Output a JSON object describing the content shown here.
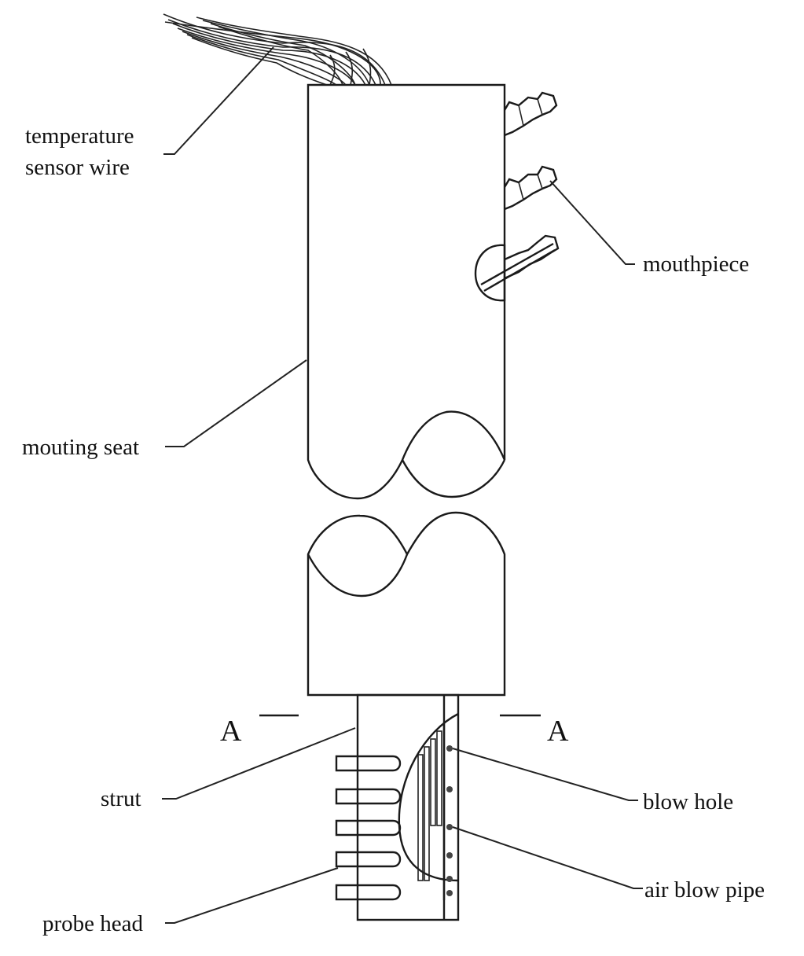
{
  "labels": {
    "temperature_sensor_wire_line1": "temperature",
    "temperature_sensor_wire_line2": "sensor wire",
    "mouthpiece": "mouthpiece",
    "mounting_seat": "mouting seat",
    "strut": "strut",
    "blow_hole": "blow hole",
    "air_blow_pipe": "air blow pipe",
    "probe_head": "probe head"
  },
  "section": {
    "left": "A",
    "right": "A"
  },
  "colors": {
    "line": "#1a1a1a",
    "background": "#ffffff"
  }
}
